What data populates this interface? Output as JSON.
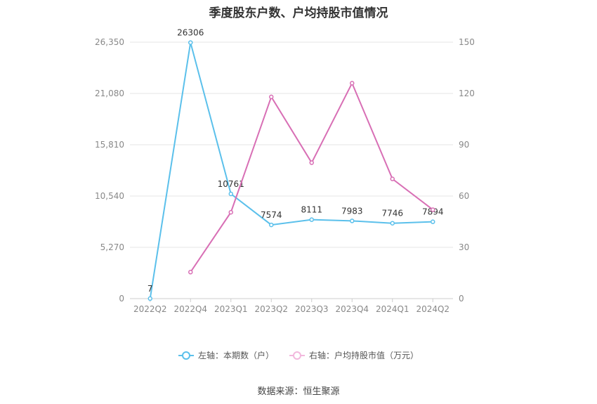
{
  "title": "季度股东户数、户均持股市值情况",
  "source": "数据来源：恒生聚源",
  "legend": {
    "left": "左轴：本期数（户）",
    "right": "右轴：户均持股市值（万元）"
  },
  "colors": {
    "left": "#5bc0eb",
    "right": "#d86fb5",
    "grid": "#e6e6e6",
    "tick": "#888888"
  },
  "chart_data": {
    "type": "line",
    "categories": [
      "2022Q2",
      "2022Q4",
      "2023Q1",
      "2023Q2",
      "2023Q3",
      "2023Q4",
      "2024Q1",
      "2024Q2"
    ],
    "y_left": {
      "ticks": [
        0,
        5270,
        10540,
        15810,
        21080,
        26350
      ],
      "tick_labels": [
        "0",
        "5,270",
        "10,540",
        "15,810",
        "21,080",
        "26,350"
      ],
      "range": [
        0,
        26350
      ]
    },
    "y_right": {
      "ticks": [
        0,
        30,
        60,
        90,
        120,
        150
      ],
      "tick_labels": [
        "0",
        "30",
        "60",
        "90",
        "120",
        "150"
      ],
      "range": [
        0,
        150
      ]
    },
    "series": [
      {
        "name": "左轴：本期数（户）",
        "axis": "left",
        "color": "#5bc0eb",
        "values": [
          7,
          26306,
          10761,
          7574,
          8111,
          7983,
          7746,
          7894
        ],
        "labels": [
          "7",
          "26306",
          "10761",
          "7574",
          "8111",
          "7983",
          "7746",
          "7894"
        ]
      },
      {
        "name": "右轴：户均持股市值（万元）",
        "axis": "right",
        "color": "#d86fb5",
        "values": [
          null,
          15.5,
          50.5,
          118,
          79.5,
          126,
          70,
          52
        ]
      }
    ],
    "grid": true,
    "legend_position": "bottom"
  }
}
